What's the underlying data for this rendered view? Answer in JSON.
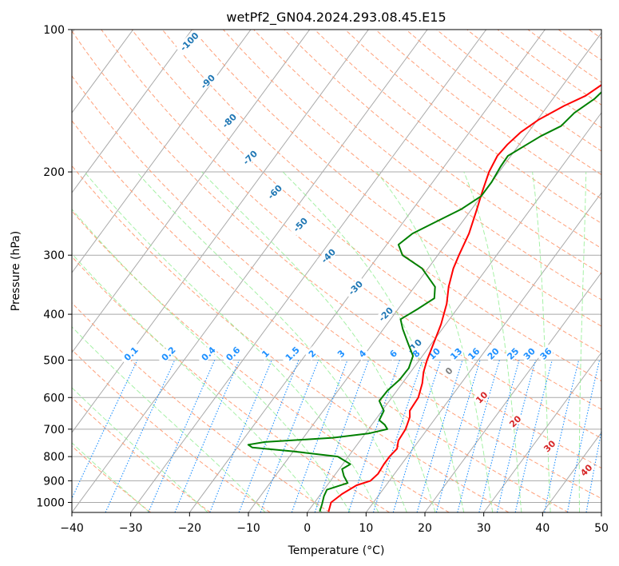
{
  "chart_data": {
    "type": "line",
    "subtype": "skew-t log-p diagram",
    "title": "wetPf2_GN04.2024.293.08.45.E15",
    "xlabel": "Temperature (°C)",
    "ylabel": "Pressure (hPa)",
    "xlim": [
      -40,
      50
    ],
    "ylim": [
      1050,
      100
    ],
    "y_scale": "log",
    "x_ticks": [
      "−40",
      "−30",
      "−20",
      "−10",
      "0",
      "10",
      "20",
      "30",
      "40",
      "50"
    ],
    "x_tick_values": [
      -40,
      -30,
      -20,
      -10,
      0,
      10,
      20,
      30,
      40,
      50
    ],
    "y_ticks": [
      "1000",
      "900",
      "800",
      "700",
      "600",
      "500",
      "400",
      "300",
      "200",
      "100"
    ],
    "y_tick_values": [
      1000,
      900,
      800,
      700,
      600,
      500,
      400,
      300,
      200,
      100
    ],
    "grid": true,
    "series": [
      {
        "role": "temperature",
        "color": "#ff0000",
        "points": [
          [
            1045,
            3.5
          ],
          [
            1000,
            2.8
          ],
          [
            960,
            3.6
          ],
          [
            920,
            5.0
          ],
          [
            900,
            6.8
          ],
          [
            870,
            7.2
          ],
          [
            830,
            7.0
          ],
          [
            800,
            7.0
          ],
          [
            770,
            7.3
          ],
          [
            740,
            6.5
          ],
          [
            700,
            6.3
          ],
          [
            660,
            5.5
          ],
          [
            640,
            4.7
          ],
          [
            600,
            4.5
          ],
          [
            560,
            3.4
          ],
          [
            530,
            2.2
          ],
          [
            500,
            1.3
          ],
          [
            460,
            0.3
          ],
          [
            420,
            -0.8
          ],
          [
            380,
            -2.4
          ],
          [
            350,
            -4.2
          ],
          [
            320,
            -5.7
          ],
          [
            300,
            -6.4
          ],
          [
            270,
            -7.4
          ],
          [
            240,
            -9.1
          ],
          [
            220,
            -10.4
          ],
          [
            200,
            -11.7
          ],
          [
            185,
            -12.3
          ],
          [
            175,
            -12.0
          ],
          [
            165,
            -11.3
          ],
          [
            155,
            -9.8
          ],
          [
            145,
            -7.2
          ],
          [
            138,
            -4.8
          ],
          [
            130,
            -3.3
          ],
          [
            120,
            -2.0
          ],
          [
            110,
            -0.7
          ],
          [
            100,
            0.0
          ]
        ]
      },
      {
        "role": "dewpoint",
        "color": "#008000",
        "points": [
          [
            1045,
            2.0
          ],
          [
            1010,
            1.5
          ],
          [
            970,
            0.8
          ],
          [
            940,
            0.5
          ],
          [
            910,
            3.2
          ],
          [
            880,
            1.7
          ],
          [
            850,
            0.5
          ],
          [
            830,
            1.3
          ],
          [
            800,
            -1.8
          ],
          [
            780,
            -10.0
          ],
          [
            765,
            -17.5
          ],
          [
            755,
            -18.5
          ],
          [
            745,
            -16.0
          ],
          [
            730,
            -5.0
          ],
          [
            715,
            0.5
          ],
          [
            700,
            3.2
          ],
          [
            685,
            2.2
          ],
          [
            670,
            0.7
          ],
          [
            640,
            0.3
          ],
          [
            610,
            -1.7
          ],
          [
            580,
            -1.6
          ],
          [
            550,
            -0.9
          ],
          [
            520,
            -0.8
          ],
          [
            490,
            -1.6
          ],
          [
            460,
            -4.1
          ],
          [
            430,
            -6.7
          ],
          [
            410,
            -8.3
          ],
          [
            390,
            -6.7
          ],
          [
            370,
            -5.2
          ],
          [
            350,
            -6.5
          ],
          [
            320,
            -11.0
          ],
          [
            300,
            -16.0
          ],
          [
            285,
            -18.0
          ],
          [
            270,
            -17.0
          ],
          [
            255,
            -14.5
          ],
          [
            240,
            -11.8
          ],
          [
            225,
            -10.0
          ],
          [
            210,
            -10.0
          ],
          [
            195,
            -10.4
          ],
          [
            185,
            -10.5
          ],
          [
            175,
            -8.7
          ],
          [
            168,
            -7.4
          ],
          [
            160,
            -5.2
          ],
          [
            150,
            -4.6
          ],
          [
            140,
            -2.9
          ],
          [
            130,
            -2.1
          ],
          [
            120,
            -0.8
          ],
          [
            110,
            0.8
          ],
          [
            100,
            3.2
          ]
        ]
      }
    ],
    "dry_adiabat_labels": [
      "-100",
      "-90",
      "-80",
      "-70",
      "-60",
      "-50",
      "-40",
      "-30",
      "-20",
      "-10"
    ],
    "moist_adiabat_labels": [
      "0",
      "10",
      "20",
      "30",
      "40"
    ],
    "mixing_ratio_labels": [
      "0.1",
      "0.2",
      "0.4",
      "0.6",
      "1",
      "1.5",
      "2",
      "3",
      "4",
      "6",
      "8",
      "10",
      "13",
      "16",
      "20",
      "25",
      "30",
      "36"
    ],
    "colors": {
      "temperature": "#ff0000",
      "dewpoint": "#008000",
      "isotherms": "#a9a9a9",
      "dry_adiabats": "#ffa07a",
      "moist_adiabats": "#90ee90",
      "mixing_ratio": "#1e90ff",
      "dry_adiabat_label": "#1f77b4",
      "moist_adiabat_label": "#d62728",
      "zero_moist_label": "#808080"
    }
  }
}
